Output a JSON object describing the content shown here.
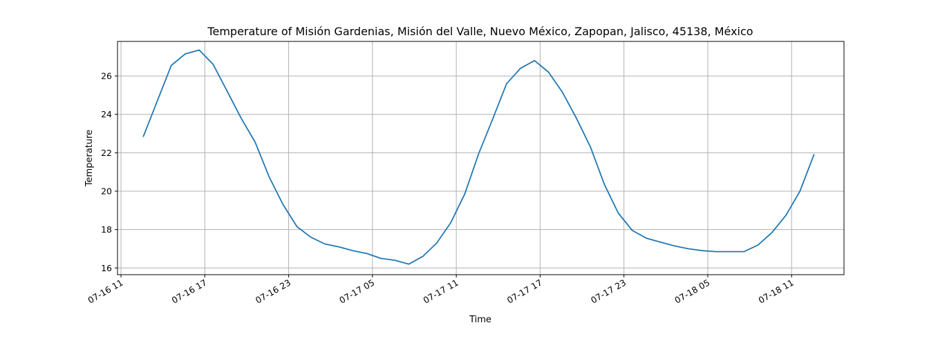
{
  "chart_data": {
    "type": "line",
    "title": "Temperature of Misión Gardenias, Misión del Valle, Nuevo México, Zapopan, Jalisco, 45138, México",
    "xlabel": "Time",
    "ylabel": "Temperature",
    "grid": true,
    "xlim": [
      "2023-07-16 10:45",
      "2023-07-18 14:45"
    ],
    "ylim": [
      15.65,
      27.8
    ],
    "x_ticks": [
      {
        "label": "07-16 11",
        "value": "2023-07-16 11:00"
      },
      {
        "label": "07-16 17",
        "value": "2023-07-16 17:00"
      },
      {
        "label": "07-16 23",
        "value": "2023-07-16 23:00"
      },
      {
        "label": "07-17 05",
        "value": "2023-07-17 05:00"
      },
      {
        "label": "07-17 11",
        "value": "2023-07-17 11:00"
      },
      {
        "label": "07-17 17",
        "value": "2023-07-17 17:00"
      },
      {
        "label": "07-17 23",
        "value": "2023-07-17 23:00"
      },
      {
        "label": "07-18 05",
        "value": "2023-07-18 05:00"
      },
      {
        "label": "07-18 11",
        "value": "2023-07-18 11:00"
      }
    ],
    "y_ticks": [
      16,
      18,
      20,
      22,
      24,
      26
    ],
    "series": [
      {
        "color": "#1f77b4",
        "x": [
          "2023-07-16 12:36",
          "2023-07-16 13:36",
          "2023-07-16 14:36",
          "2023-07-16 15:36",
          "2023-07-16 16:36",
          "2023-07-16 17:36",
          "2023-07-16 18:36",
          "2023-07-16 19:36",
          "2023-07-16 20:36",
          "2023-07-16 21:36",
          "2023-07-16 22:36",
          "2023-07-16 23:36",
          "2023-07-17 00:36",
          "2023-07-17 01:36",
          "2023-07-17 02:36",
          "2023-07-17 03:36",
          "2023-07-17 04:36",
          "2023-07-17 05:36",
          "2023-07-17 06:36",
          "2023-07-17 07:36",
          "2023-07-17 08:36",
          "2023-07-17 09:36",
          "2023-07-17 10:36",
          "2023-07-17 11:36",
          "2023-07-17 12:36",
          "2023-07-17 13:36",
          "2023-07-17 14:36",
          "2023-07-17 15:36",
          "2023-07-17 16:36",
          "2023-07-17 17:36",
          "2023-07-17 18:36",
          "2023-07-17 19:36",
          "2023-07-17 20:36",
          "2023-07-17 21:36",
          "2023-07-17 22:36",
          "2023-07-17 23:36",
          "2023-07-18 00:36",
          "2023-07-18 01:36",
          "2023-07-18 02:36",
          "2023-07-18 03:36",
          "2023-07-18 04:36",
          "2023-07-18 05:36",
          "2023-07-18 06:36",
          "2023-07-18 07:36",
          "2023-07-18 08:36",
          "2023-07-18 09:36",
          "2023-07-18 10:36",
          "2023-07-18 11:36",
          "2023-07-18 12:36"
        ],
        "y": [
          22.85,
          24.7,
          26.55,
          27.15,
          27.35,
          26.6,
          25.2,
          23.8,
          22.55,
          20.75,
          19.3,
          18.15,
          17.6,
          17.25,
          17.1,
          16.9,
          16.75,
          16.5,
          16.4,
          16.2,
          16.6,
          17.3,
          18.35,
          19.85,
          21.95,
          23.75,
          25.6,
          26.4,
          26.8,
          26.2,
          25.15,
          23.8,
          22.3,
          20.35,
          18.85,
          17.95,
          17.55,
          17.35,
          17.15,
          17.0,
          16.9,
          16.85,
          16.85,
          16.85,
          17.2,
          17.85,
          18.75,
          20.0,
          21.9
        ]
      }
    ]
  }
}
